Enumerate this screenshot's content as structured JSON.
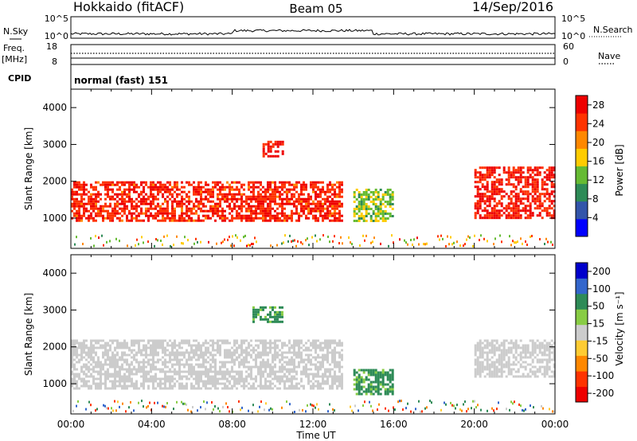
{
  "header": {
    "site": "Hokkaido (fitACF)",
    "beam": "Beam 05",
    "date": "14/Sep/2016"
  },
  "noise_panel": {
    "left_label": "N.Sky",
    "right_label": "N.Search",
    "ticks_left": [
      "10^5",
      "10^0"
    ],
    "ticks_right": [
      "10^5",
      "10^0"
    ]
  },
  "freq_panel": {
    "left_label_1": "Freq.",
    "left_label_2": "[MHz]",
    "right_label": "Nave",
    "ticks_left": [
      "18",
      "8"
    ],
    "ticks_right": [
      "60",
      "0"
    ]
  },
  "cpid": {
    "label": "CPID",
    "value": "normal (fast) 151"
  },
  "chart_data": [
    {
      "type": "heatmap",
      "title": "",
      "ylabel": "Slant Range [km]",
      "xlabel": "",
      "xlim": [
        "00:00",
        "24:00"
      ],
      "ylim": [
        180,
        4500
      ],
      "y_ticks": [
        1000,
        2000,
        3000,
        4000
      ],
      "colorbar": {
        "label": "Power [dB]",
        "ticks": [
          4,
          8,
          12,
          16,
          20,
          24,
          28
        ],
        "range": [
          0,
          30
        ],
        "colors": [
          "#0000ff",
          "#3355aa",
          "#2e8b57",
          "#66bb33",
          "#ffcc00",
          "#ff8800",
          "#ff3300",
          "#ee0000"
        ]
      },
      "features": [
        {
          "time": [
            "00:00",
            "13:30"
          ],
          "range_km": [
            900,
            2000
          ],
          "value_db": 26
        },
        {
          "time": [
            "09:30",
            "10:30"
          ],
          "range_km": [
            2700,
            3100
          ],
          "value_db": 28
        },
        {
          "time": [
            "14:00",
            "16:00"
          ],
          "range_km": [
            900,
            1800
          ],
          "value_db": 14
        },
        {
          "time": [
            "20:00",
            "24:00"
          ],
          "range_km": [
            1000,
            2400
          ],
          "value_db": 27
        }
      ]
    },
    {
      "type": "heatmap",
      "title": "",
      "ylabel": "Slant Range [km]",
      "xlabel": "Time UT",
      "xlim": [
        "00:00",
        "24:00"
      ],
      "x_ticks": [
        "00:00",
        "04:00",
        "08:00",
        "12:00",
        "16:00",
        "20:00",
        "00:00"
      ],
      "ylim": [
        180,
        4500
      ],
      "y_ticks": [
        1000,
        2000,
        3000,
        4000
      ],
      "colorbar": {
        "label": "Velocity [m s⁻¹]",
        "ticks": [
          200,
          100,
          50,
          15,
          -15,
          -50,
          -100,
          -200
        ],
        "range": [
          -250,
          250
        ],
        "colors": [
          "#0000cc",
          "#3366cc",
          "#2e8b57",
          "#88cc44",
          "#cccccc",
          "#ffcc33",
          "#ff8800",
          "#ff3300",
          "#ee0000"
        ]
      },
      "features": [
        {
          "time": [
            "00:00",
            "13:30"
          ],
          "range_km": [
            900,
            2200
          ],
          "value_ms": 0
        },
        {
          "time": [
            "09:00",
            "10:30"
          ],
          "range_km": [
            2700,
            3100
          ],
          "value_ms": 60
        },
        {
          "time": [
            "14:00",
            "16:00"
          ],
          "range_km": [
            700,
            1400
          ],
          "value_ms": 60
        },
        {
          "time": [
            "20:00",
            "24:00"
          ],
          "range_km": [
            1200,
            2200
          ],
          "value_ms": 0
        }
      ]
    }
  ]
}
